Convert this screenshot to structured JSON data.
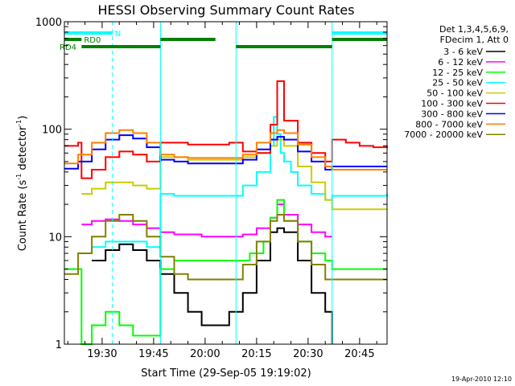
{
  "chart_data": {
    "type": "line",
    "title": "HESSI Observing Summary Count Rates",
    "xlabel": "Start Time (29-Sep-05 19:19:02)",
    "ylabel_prefix": "Count Rate (s",
    "ylabel_mid": " detector",
    "ylabel_suffix": ")",
    "ylabel_exp": "-1",
    "y_scale": "log",
    "ylim": [
      1,
      1000
    ],
    "xlim": [
      "19:19",
      "20:53"
    ],
    "x_ticks": [
      "19:30",
      "19:45",
      "20:00",
      "20:15",
      "20:30",
      "20:45"
    ],
    "y_ticks": [
      "1",
      "10",
      "100",
      "1000"
    ],
    "legend_header": [
      "Det 1,3,4,5,6,9,",
      "FDecim 1, Att 0"
    ],
    "legend_placement": "right",
    "timestamp": "19-Apr-2010 12:10",
    "status_bars": [
      {
        "label": "N",
        "color": "#00ffff",
        "segments": [
          [
            "19:19",
            "19:33"
          ],
          [
            "20:37",
            "20:53"
          ]
        ]
      },
      {
        "label": "RD0",
        "color": "#008000",
        "segments": [
          [
            "19:19",
            "19:24"
          ],
          [
            "19:47",
            "20:03"
          ],
          [
            "20:37",
            "20:53"
          ]
        ]
      },
      {
        "label": "RD4",
        "color": "#008000",
        "segments": [
          [
            "19:24",
            "19:47"
          ],
          [
            "20:09",
            "20:37"
          ]
        ]
      }
    ],
    "vertical_markers": {
      "color": "#00ffff",
      "solid": [
        "19:19",
        "19:47",
        "20:09",
        "20:37"
      ],
      "dashed": [
        "19:33",
        "20:53"
      ]
    },
    "series": [
      {
        "name": "3 - 6 keV",
        "color": "#000000",
        "x": [
          "19:19",
          "19:23",
          "19:27",
          "19:31",
          "19:35",
          "19:39",
          "19:43",
          "19:47",
          "19:51",
          "19:55",
          "19:59",
          "20:03",
          "20:07",
          "20:11",
          "20:15",
          "20:19",
          "20:21",
          "20:23",
          "20:27",
          "20:31",
          "20:35",
          "20:37"
        ],
        "values": [
          null,
          null,
          6.0,
          7.5,
          8.5,
          7.5,
          6.0,
          4.5,
          3.0,
          2.0,
          1.5,
          1.5,
          2.0,
          3.0,
          6.0,
          11,
          12,
          11,
          6.0,
          3.0,
          2.0,
          1.0
        ]
      },
      {
        "name": "6 - 12 keV",
        "color": "#ff00ff",
        "x": [
          "19:24",
          "19:27",
          "19:31",
          "19:35",
          "19:39",
          "19:43",
          "19:47",
          "19:51",
          "19:55",
          "19:59",
          "20:03",
          "20:07",
          "20:11",
          "20:15",
          "20:19",
          "20:21",
          "20:23",
          "20:27",
          "20:31",
          "20:35",
          "20:37"
        ],
        "values": [
          13,
          14,
          14.5,
          14,
          13,
          12,
          11,
          10.5,
          10.5,
          10,
          10,
          10,
          10.5,
          12,
          15,
          20,
          16,
          13,
          11,
          10,
          10
        ]
      },
      {
        "name": "12 - 25 keV",
        "color": "#00ff00",
        "x": [
          "19:19",
          "19:23",
          "19:24",
          "19:27",
          "19:31",
          "19:35",
          "19:39",
          "19:43",
          "19:47",
          "19:51",
          "19:55",
          "19:59",
          "20:03",
          "20:07",
          "20:09",
          "20:13",
          "20:17",
          "20:19",
          "20:21",
          "20:23",
          "20:27",
          "20:31",
          "20:35",
          "20:37",
          "20:41",
          "20:45",
          "20:49",
          "20:53"
        ],
        "values": [
          5,
          5,
          1,
          1.5,
          2,
          1.5,
          1.2,
          1.2,
          5,
          6,
          6,
          6,
          6,
          6,
          6,
          7,
          9,
          15,
          22,
          14,
          9,
          7,
          6,
          5,
          5,
          5,
          5,
          5
        ]
      },
      {
        "name": "25 - 50 keV",
        "color": "#00ffff",
        "x": [
          "19:24",
          "19:27",
          "19:31",
          "19:35",
          "19:39",
          "19:43",
          "19:47",
          "19:51",
          "19:55",
          "19:59",
          "20:03",
          "20:07",
          "20:11",
          "20:15",
          "20:19",
          "20:20",
          "20:21",
          "20:22",
          "20:23",
          "20:25",
          "20:27",
          "20:31",
          "20:35",
          "20:37",
          "20:41",
          "20:45",
          "20:49",
          "20:53"
        ],
        "values": [
          7,
          8,
          9,
          9,
          9,
          8,
          25,
          24,
          24,
          24,
          24,
          24,
          30,
          40,
          70,
          130,
          90,
          60,
          50,
          40,
          30,
          25,
          22,
          24,
          24,
          24,
          24,
          25
        ]
      },
      {
        "name": "50 - 100 keV",
        "color": "#cccc00",
        "x": [
          "19:24",
          "19:27",
          "19:31",
          "19:35",
          "19:39",
          "19:43",
          "19:47",
          "19:51",
          "19:55",
          "19:59",
          "20:03",
          "20:07",
          "20:11",
          "20:15",
          "20:19",
          "20:21",
          "20:23",
          "20:27",
          "20:31",
          "20:35",
          "20:37",
          "20:41",
          "20:45",
          "20:49",
          "20:53"
        ],
        "values": [
          25,
          28,
          32,
          32,
          30,
          28,
          55,
          55,
          52,
          52,
          52,
          52,
          55,
          60,
          70,
          80,
          70,
          45,
          32,
          22,
          18,
          18,
          18,
          18,
          18
        ]
      },
      {
        "name": "100 - 300 keV",
        "color": "#ff0000",
        "x": [
          "19:19",
          "19:23",
          "19:24",
          "19:27",
          "19:31",
          "19:35",
          "19:39",
          "19:43",
          "19:47",
          "19:51",
          "19:55",
          "19:59",
          "20:03",
          "20:07",
          "20:11",
          "20:15",
          "20:19",
          "20:21",
          "20:23",
          "20:27",
          "20:31",
          "20:35",
          "20:37",
          "20:41",
          "20:45",
          "20:49",
          "20:53"
        ],
        "values": [
          70,
          75,
          35,
          42,
          55,
          62,
          58,
          50,
          75,
          75,
          72,
          72,
          72,
          75,
          62,
          60,
          110,
          280,
          120,
          75,
          60,
          50,
          80,
          75,
          70,
          68,
          70
        ]
      },
      {
        "name": "300 - 800 keV",
        "color": "#0000ff",
        "x": [
          "19:19",
          "19:23",
          "19:27",
          "19:31",
          "19:35",
          "19:39",
          "19:43",
          "19:47",
          "19:51",
          "19:55",
          "19:59",
          "20:03",
          "20:07",
          "20:11",
          "20:15",
          "20:19",
          "20:21",
          "20:23",
          "20:27",
          "20:31",
          "20:35",
          "20:37",
          "20:41",
          "20:45",
          "20:49",
          "20:53"
        ],
        "values": [
          43,
          50,
          65,
          80,
          88,
          82,
          68,
          52,
          50,
          48,
          48,
          48,
          48,
          52,
          65,
          80,
          85,
          80,
          62,
          50,
          42,
          45,
          45,
          45,
          45,
          45
        ]
      },
      {
        "name": "800 - 7000 keV",
        "color": "#ff8000",
        "x": [
          "19:19",
          "19:23",
          "19:27",
          "19:31",
          "19:35",
          "19:39",
          "19:43",
          "19:47",
          "19:51",
          "19:55",
          "19:59",
          "20:03",
          "20:07",
          "20:11",
          "20:15",
          "20:19",
          "20:21",
          "20:23",
          "20:27",
          "20:31",
          "20:35",
          "20:37",
          "20:41",
          "20:45",
          "20:49",
          "20:53"
        ],
        "values": [
          48,
          58,
          75,
          92,
          98,
          92,
          75,
          58,
          55,
          54,
          54,
          54,
          54,
          58,
          75,
          92,
          98,
          92,
          72,
          55,
          45,
          42,
          42,
          42,
          42,
          42
        ]
      },
      {
        "name": "7000 - 20000 keV",
        "color": "#808000",
        "x": [
          "19:19",
          "19:23",
          "19:27",
          "19:31",
          "19:35",
          "19:39",
          "19:43",
          "19:47",
          "19:51",
          "19:55",
          "19:59",
          "20:03",
          "20:07",
          "20:11",
          "20:15",
          "20:19",
          "20:21",
          "20:23",
          "20:27",
          "20:31",
          "20:35",
          "20:37",
          "20:41",
          "20:45",
          "20:49",
          "20:53"
        ],
        "values": [
          4.5,
          7,
          10,
          14,
          16,
          14,
          10,
          6.5,
          4.5,
          4,
          4,
          4,
          4,
          5.5,
          9,
          14,
          16,
          14,
          9,
          5.5,
          4,
          4,
          4,
          4,
          4,
          4
        ]
      }
    ]
  }
}
